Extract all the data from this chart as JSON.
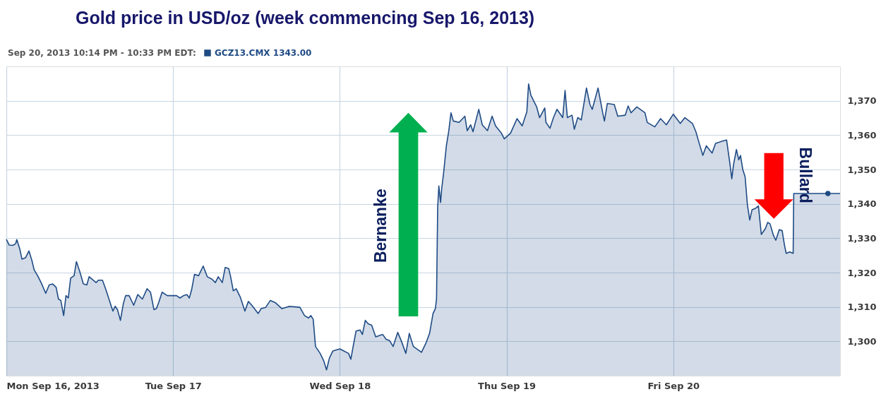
{
  "chart_data": {
    "type": "area",
    "title": "Gold price in USD/oz (week commencing Sep 16, 2013)",
    "legend_title": "Sep 20, 2013 10:14 PM - 10:33 PM EDT:",
    "legend": "top left",
    "grid": true,
    "xlim": [
      "2013-09-16T00:00",
      "2013-09-21T00:00"
    ],
    "xticks": [
      {
        "value": "2013-09-16T00:00",
        "label": "Mon Sep 16, 2013"
      },
      {
        "value": "2013-09-17T00:00",
        "label": "Tue Sep 17"
      },
      {
        "value": "2013-09-18T00:00",
        "label": "Wed Sep 18"
      },
      {
        "value": "2013-09-19T00:00",
        "label": "Thu Sep 19"
      },
      {
        "value": "2013-09-20T00:00",
        "label": "Fri Sep 20"
      }
    ],
    "ylim": [
      1290,
      1380
    ],
    "yticks": [
      {
        "value": 1300,
        "label": "1,300"
      },
      {
        "value": 1310,
        "label": "1,310"
      },
      {
        "value": 1320,
        "label": "1,320"
      },
      {
        "value": 1330,
        "label": "1,330"
      },
      {
        "value": 1340,
        "label": "1,340"
      },
      {
        "value": 1350,
        "label": "1,350"
      },
      {
        "value": 1360,
        "label": "1,360"
      },
      {
        "value": 1370,
        "label": "1,370"
      }
    ],
    "annotations": [
      "Bernanke",
      "Bullard"
    ],
    "series": [
      {
        "name": "GCZ13.CMX 1343.00",
        "color": "#1f4b85",
        "x": [
          "2013-09-16T00:00",
          "2013-09-16T00:25",
          "2013-09-16T00:55",
          "2013-09-16T01:20",
          "2013-09-16T01:30",
          "2013-09-16T01:55",
          "2013-09-16T02:15",
          "2013-09-16T02:45",
          "2013-09-16T03:15",
          "2013-09-16T03:40",
          "2013-09-16T04:00",
          "2013-09-16T04:30",
          "2013-09-16T05:00",
          "2013-09-16T05:40",
          "2013-09-16T06:10",
          "2013-09-16T06:40",
          "2013-09-16T07:10",
          "2013-09-16T07:30",
          "2013-09-16T07:50",
          "2013-09-16T08:15",
          "2013-09-16T08:35",
          "2013-09-16T08:55",
          "2013-09-16T09:15",
          "2013-09-16T09:45",
          "2013-09-16T10:05",
          "2013-09-16T10:35",
          "2013-09-16T11:05",
          "2013-09-16T11:35",
          "2013-09-16T11:55",
          "2013-09-16T12:55",
          "2013-09-16T13:15",
          "2013-09-16T13:50",
          "2013-09-16T14:20",
          "2013-09-16T14:50",
          "2013-09-16T15:20",
          "2013-09-16T15:40",
          "2013-09-16T16:00",
          "2013-09-16T16:25",
          "2013-09-16T16:50",
          "2013-09-16T17:10",
          "2013-09-16T17:40",
          "2013-09-16T18:20",
          "2013-09-16T18:55",
          "2013-09-16T19:35",
          "2013-09-16T20:15",
          "2013-09-16T20:45",
          "2013-09-16T21:15",
          "2013-09-16T21:35",
          "2013-09-16T21:55",
          "2013-09-16T22:25",
          "2013-09-16T23:10",
          "2013-09-17T00:30",
          "2013-09-17T01:00",
          "2013-09-17T01:30",
          "2013-09-17T02:00",
          "2013-09-17T02:20",
          "2013-09-17T02:40",
          "2013-09-17T03:05",
          "2013-09-17T03:40",
          "2013-09-17T04:20",
          "2013-09-17T04:55",
          "2013-09-17T05:35",
          "2013-09-17T06:05",
          "2013-09-17T06:30",
          "2013-09-17T07:05",
          "2013-09-17T07:30",
          "2013-09-17T08:00",
          "2013-09-17T08:15",
          "2013-09-17T08:40",
          "2013-09-17T09:05",
          "2013-09-17T09:40",
          "2013-09-17T10:20",
          "2013-09-17T10:50",
          "2013-09-17T11:20",
          "2013-09-17T12:15",
          "2013-09-17T12:40",
          "2013-09-17T13:20",
          "2013-09-17T14:00",
          "2013-09-17T14:45",
          "2013-09-17T15:40",
          "2013-09-17T16:45",
          "2013-09-17T18:15",
          "2013-09-17T18:55",
          "2013-09-17T19:30",
          "2013-09-17T19:50",
          "2013-09-17T20:10",
          "2013-09-17T20:30",
          "2013-09-17T21:10",
          "2013-09-17T21:40",
          "2013-09-17T22:05",
          "2013-09-17T22:30",
          "2013-09-17T23:00",
          "2013-09-18T00:00",
          "2013-09-18T00:35",
          "2013-09-18T01:15",
          "2013-09-18T01:35",
          "2013-09-18T01:55",
          "2013-09-18T02:20",
          "2013-09-18T02:55",
          "2013-09-18T03:15",
          "2013-09-18T03:40",
          "2013-09-18T04:05",
          "2013-09-18T04:35",
          "2013-09-18T05:10",
          "2013-09-18T06:10",
          "2013-09-18T06:40",
          "2013-09-18T07:10",
          "2013-09-18T07:40",
          "2013-09-18T08:20",
          "2013-09-18T08:50",
          "2013-09-18T09:30",
          "2013-09-18T10:00",
          "2013-09-18T10:35",
          "2013-09-18T11:05",
          "2013-09-18T11:45",
          "2013-09-18T12:25",
          "2013-09-18T12:55",
          "2013-09-18T13:25",
          "2013-09-18T13:45",
          "2013-09-18T13:55",
          "2013-09-18T14:05",
          "2013-09-18T14:15",
          "2013-09-18T14:30",
          "2013-09-18T14:40",
          "2013-09-18T14:55",
          "2013-09-18T15:20",
          "2013-09-18T15:40",
          "2013-09-18T16:00",
          "2013-09-18T16:20",
          "2013-09-18T17:10",
          "2013-09-18T18:00",
          "2013-09-18T18:20",
          "2013-09-18T18:50",
          "2013-09-18T19:10",
          "2013-09-18T20:00",
          "2013-09-18T20:30",
          "2013-09-18T21:15",
          "2013-09-18T21:55",
          "2013-09-18T22:25",
          "2013-09-18T23:15",
          "2013-09-18T23:40",
          "2013-09-19T00:35",
          "2013-09-19T01:30",
          "2013-09-19T02:15",
          "2013-09-19T02:55",
          "2013-09-19T03:10",
          "2013-09-19T03:30",
          "2013-09-19T04:20",
          "2013-09-19T04:45",
          "2013-09-19T05:30",
          "2013-09-19T05:40",
          "2013-09-19T06:15",
          "2013-09-19T06:45",
          "2013-09-19T07:15",
          "2013-09-19T08:05",
          "2013-09-19T08:25",
          "2013-09-19T08:45",
          "2013-09-19T09:25",
          "2013-09-19T09:45",
          "2013-09-19T10:15",
          "2013-09-19T10:45",
          "2013-09-19T11:30",
          "2013-09-19T12:00",
          "2013-09-19T12:20",
          "2013-09-19T13:10",
          "2013-09-19T13:50",
          "2013-09-19T14:05",
          "2013-09-19T14:30",
          "2013-09-19T15:30",
          "2013-09-19T16:00",
          "2013-09-19T17:05",
          "2013-09-19T17:30",
          "2013-09-19T17:55",
          "2013-09-19T18:45",
          "2013-09-19T19:55",
          "2013-09-19T20:15",
          "2013-09-19T21:20",
          "2013-09-19T22:10",
          "2013-09-19T23:00",
          "2013-09-20T00:00",
          "2013-09-20T01:00",
          "2013-09-20T01:40",
          "2013-09-20T02:45",
          "2013-09-20T03:15",
          "2013-09-20T03:35",
          "2013-09-20T04:15",
          "2013-09-20T04:45",
          "2013-09-20T05:35",
          "2013-09-20T06:05",
          "2013-09-20T07:00",
          "2013-09-20T07:40",
          "2013-09-20T08:10",
          "2013-09-20T08:25",
          "2013-09-20T08:40",
          "2013-09-20T09:05",
          "2013-09-20T09:25",
          "2013-09-20T09:40",
          "2013-09-20T10:00",
          "2013-09-20T10:20",
          "2013-09-20T10:40",
          "2013-09-20T11:00",
          "2013-09-20T11:20",
          "2013-09-20T11:50",
          "2013-09-20T12:15",
          "2013-09-20T12:40",
          "2013-09-20T13:15",
          "2013-09-20T13:35",
          "2013-09-20T13:55",
          "2013-09-20T14:25",
          "2013-09-20T14:45",
          "2013-09-20T15:15",
          "2013-09-20T15:40",
          "2013-09-20T16:00",
          "2013-09-20T16:15",
          "2013-09-20T16:45",
          "2013-09-20T17:15",
          "2013-09-20T17:20",
          "2013-09-20T22:15",
          "2013-09-21T00:00"
        ],
        "values": [
          1329.7,
          1328.0,
          1327.9,
          1328.4,
          1329.6,
          1327.0,
          1323.9,
          1324.3,
          1326.3,
          1323.6,
          1320.8,
          1319.1,
          1317.1,
          1314.0,
          1316.4,
          1316.7,
          1315.7,
          1312.3,
          1311.9,
          1307.5,
          1313.3,
          1312.6,
          1318.4,
          1319.1,
          1323.2,
          1320.2,
          1316.7,
          1316.4,
          1318.8,
          1317.1,
          1317.8,
          1317.8,
          1315.0,
          1311.9,
          1308.8,
          1310.2,
          1309.2,
          1306.1,
          1310.9,
          1313.3,
          1313.3,
          1310.5,
          1313.6,
          1312.3,
          1315.3,
          1314.3,
          1309.2,
          1309.5,
          1311.2,
          1314.3,
          1313.3,
          1313.3,
          1312.6,
          1313.3,
          1313.6,
          1312.6,
          1315.0,
          1319.5,
          1319.1,
          1321.9,
          1318.8,
          1318.1,
          1317.1,
          1318.8,
          1317.1,
          1321.5,
          1321.2,
          1319.1,
          1314.7,
          1315.3,
          1312.9,
          1308.8,
          1311.6,
          1310.5,
          1308.1,
          1309.5,
          1309.9,
          1311.9,
          1311.2,
          1309.5,
          1310.2,
          1309.9,
          1307.5,
          1306.8,
          1307.5,
          1306.4,
          1298.5,
          1296.5,
          1294.4,
          1291.7,
          1295.1,
          1297.2,
          1297.8,
          1297.2,
          1296.5,
          1294.8,
          1298.5,
          1303.0,
          1303.3,
          1302.0,
          1306.1,
          1305.1,
          1304.7,
          1301.3,
          1302.0,
          1300.6,
          1300.2,
          1298.5,
          1302.6,
          1300.2,
          1296.5,
          1302.3,
          1298.5,
          1297.8,
          1296.8,
          1299.6,
          1302.3,
          1308.1,
          1309.5,
          1312.3,
          1339.0,
          1345.2,
          1340.4,
          1344.5,
          1348.6,
          1356.9,
          1361.0,
          1366.5,
          1364.1,
          1363.7,
          1365.5,
          1361.3,
          1363.0,
          1361.0,
          1367.5,
          1363.0,
          1361.3,
          1365.5,
          1362.7,
          1360.6,
          1358.9,
          1360.6,
          1364.8,
          1362.7,
          1366.8,
          1374.9,
          1371.6,
          1368.2,
          1365.1,
          1367.9,
          1363.7,
          1362.0,
          1365.1,
          1367.5,
          1365.1,
          1373.0,
          1365.1,
          1365.8,
          1361.7,
          1365.1,
          1364.4,
          1373.7,
          1368.9,
          1367.5,
          1373.7,
          1366.5,
          1364.1,
          1369.2,
          1368.9,
          1365.5,
          1365.8,
          1368.5,
          1366.5,
          1368.2,
          1366.5,
          1363.7,
          1362.4,
          1364.8,
          1363.0,
          1366.1,
          1363.4,
          1365.1,
          1363.4,
          1361.0,
          1358.6,
          1354.1,
          1356.9,
          1354.8,
          1357.6,
          1358.2,
          1358.6,
          1351.4,
          1347.3,
          1351.4,
          1355.8,
          1352.8,
          1354.1,
          1350.0,
          1347.9,
          1339.7,
          1335.3,
          1338.3,
          1338.7,
          1339.4,
          1331.1,
          1332.8,
          1334.6,
          1334.2,
          1330.8,
          1329.4,
          1332.5,
          1332.2,
          1328.0,
          1325.6,
          1326.0,
          1325.6,
          1343.0,
          1343.0,
          1343.0
        ]
      },
      {
        "type": "scatter",
        "marker": "circle",
        "color": "#1f4b85",
        "x": [
          "2013-09-20T22:15"
        ],
        "values": [
          1343.0
        ]
      }
    ]
  }
}
